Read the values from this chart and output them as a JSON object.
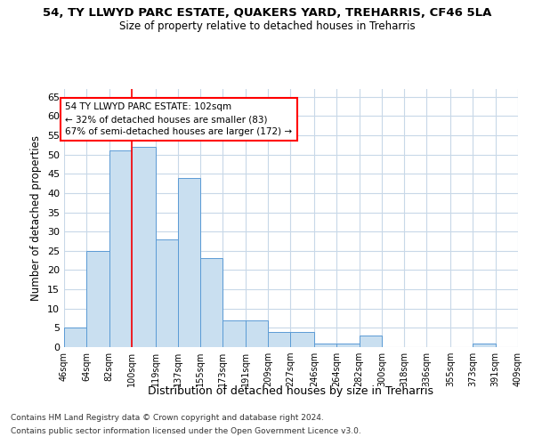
{
  "title": "54, TY LLWYD PARC ESTATE, QUAKERS YARD, TREHARRIS, CF46 5LA",
  "subtitle": "Size of property relative to detached houses in Treharris",
  "xlabel": "Distribution of detached houses by size in Treharris",
  "ylabel": "Number of detached properties",
  "footer_line1": "Contains HM Land Registry data © Crown copyright and database right 2024.",
  "footer_line2": "Contains public sector information licensed under the Open Government Licence v3.0.",
  "annotation_line1": "54 TY LLWYD PARC ESTATE: 102sqm",
  "annotation_line2": "← 32% of detached houses are smaller (83)",
  "annotation_line3": "67% of semi-detached houses are larger (172) →",
  "bar_color": "#c9dff0",
  "bar_edge_color": "#5b9bd5",
  "red_line_x": 100,
  "ylim": [
    0,
    67
  ],
  "yticks": [
    0,
    5,
    10,
    15,
    20,
    25,
    30,
    35,
    40,
    45,
    50,
    55,
    60,
    65
  ],
  "bins": [
    46,
    64,
    82,
    100,
    119,
    137,
    155,
    173,
    191,
    209,
    227,
    246,
    264,
    282,
    300,
    318,
    336,
    355,
    373,
    391,
    409
  ],
  "bin_labels": [
    "46sqm",
    "64sqm",
    "82sqm",
    "100sqm",
    "119sqm",
    "137sqm",
    "155sqm",
    "173sqm",
    "191sqm",
    "209sqm",
    "227sqm",
    "246sqm",
    "264sqm",
    "282sqm",
    "300sqm",
    "318sqm",
    "336sqm",
    "355sqm",
    "373sqm",
    "391sqm",
    "409sqm"
  ],
  "counts": [
    5,
    25,
    51,
    52,
    28,
    44,
    23,
    7,
    7,
    4,
    4,
    1,
    1,
    3,
    0,
    0,
    0,
    0,
    1,
    0
  ],
  "background_color": "#ffffff",
  "grid_color": "#c8d8e8"
}
